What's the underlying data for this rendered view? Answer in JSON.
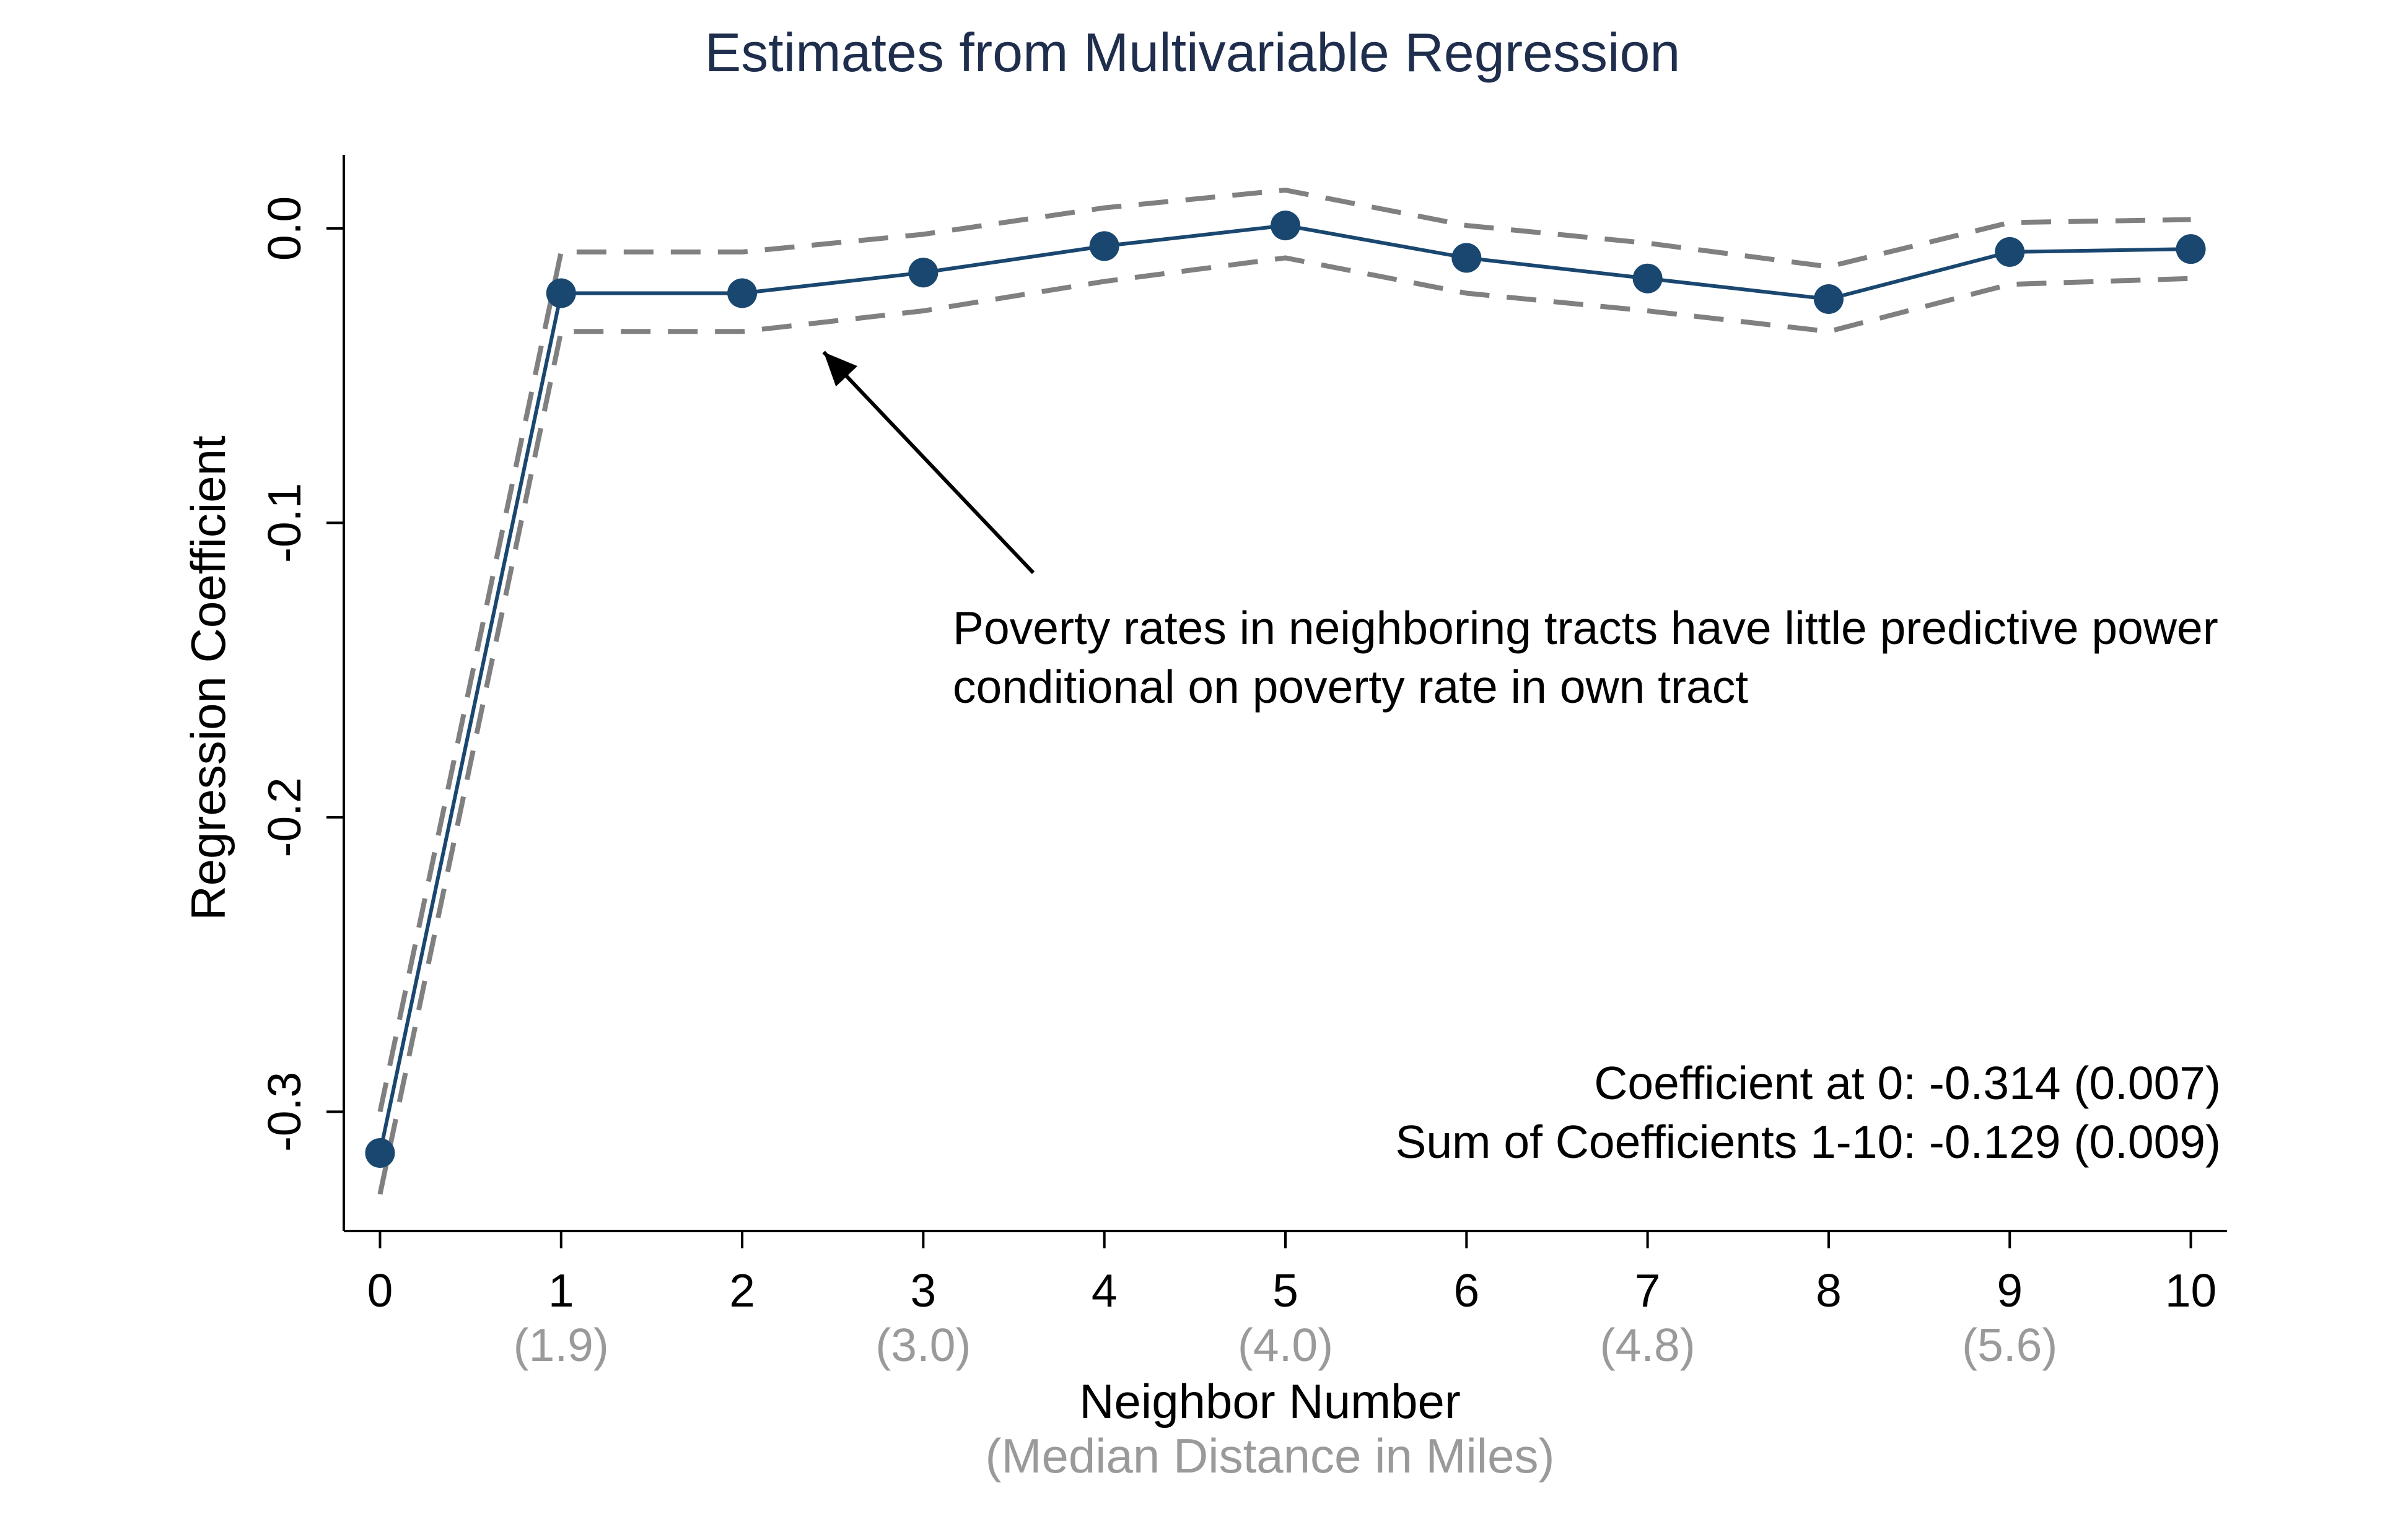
{
  "chart_data": {
    "type": "line",
    "title": "Estimates from Multivariable Regression",
    "xlabel": "Neighbor Number",
    "xlabel_sub": "(Median Distance in Miles)",
    "ylabel": "Regression Coefficient",
    "xlim": [
      -0.2,
      10.2
    ],
    "ylim": [
      -0.3405,
      0.025
    ],
    "x_ticks": [
      0,
      1,
      2,
      3,
      4,
      5,
      6,
      7,
      8,
      9,
      10
    ],
    "x_tick_labels": [
      "0",
      "1",
      "2",
      "3",
      "4",
      "5",
      "6",
      "7",
      "8",
      "9",
      "10"
    ],
    "x_subticks": [
      {
        "x": 1,
        "label": "(1.9)"
      },
      {
        "x": 3,
        "label": "(3.0)"
      },
      {
        "x": 5,
        "label": "(4.0)"
      },
      {
        "x": 7,
        "label": "(4.8)"
      },
      {
        "x": 9,
        "label": "(5.6)"
      }
    ],
    "y_ticks": [
      0.0,
      -0.1,
      -0.2,
      -0.3
    ],
    "y_tick_labels": [
      "0.0",
      "-0.1",
      "-0.2",
      "-0.3"
    ],
    "grid": false,
    "x": [
      0,
      1,
      2,
      3,
      4,
      5,
      6,
      7,
      8,
      9,
      10
    ],
    "series": [
      {
        "role": "estimate",
        "values": [
          -0.314,
          -0.022,
          -0.022,
          -0.015,
          -0.006,
          0.001,
          -0.01,
          -0.017,
          -0.024,
          -0.008,
          -0.007
        ],
        "color": "#1a476f",
        "style": "solid",
        "markers": true
      },
      {
        "role": "upper-ci",
        "values": [
          -0.3,
          -0.008,
          -0.008,
          -0.002,
          0.007,
          0.013,
          0.001,
          -0.005,
          -0.013,
          0.002,
          0.003
        ],
        "color": "#808080",
        "style": "dashed",
        "markers": false
      },
      {
        "role": "lower-ci",
        "values": [
          -0.328,
          -0.035,
          -0.035,
          -0.028,
          -0.018,
          -0.01,
          -0.022,
          -0.028,
          -0.035,
          -0.019,
          -0.017
        ],
        "color": "#808080",
        "style": "dashed",
        "markers": false
      }
    ],
    "annotation": {
      "lines": [
        "Poverty rates in neighboring tracts have little predictive power",
        "conditional on poverty rate in own tract"
      ],
      "arrow_points_to": {
        "x": 2.45,
        "y": -0.042
      }
    },
    "stats": [
      "Coefficient at 0: -0.314 (0.007)",
      "Sum of Coefficients 1-10: -0.129 (0.009)"
    ]
  }
}
